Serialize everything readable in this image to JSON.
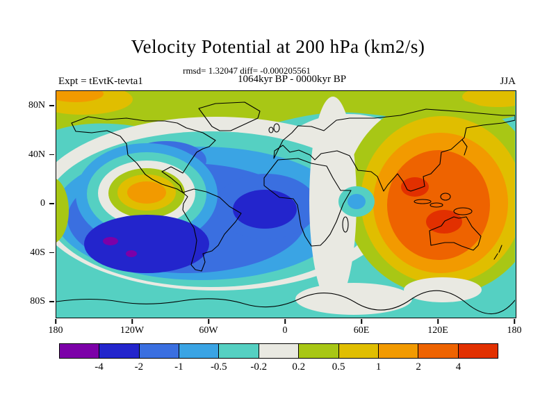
{
  "chart_data": {
    "type": "heatmap",
    "subtype": "filled-contour-global-map",
    "title": "Velocity Potential at 200 hPa (km2/s)",
    "stats_line": "rmsd= 1.32047 diff= -0.000205561",
    "difference_label": "1064kyr BP - 0000kyr BP",
    "experiment_label": "Expt = tEvtK-tevta1",
    "season_label": "JJA",
    "units": "km2/s",
    "x_ticks": [
      "180",
      "120W",
      "60W",
      "0",
      "60E",
      "120E",
      "180"
    ],
    "y_ticks": [
      "80N",
      "40N",
      "0",
      "40S",
      "80S"
    ],
    "grid": false,
    "legend_position": "bottom-colorbar",
    "colorbar": {
      "levels": [
        "-4",
        "-2",
        "-1",
        "-0.5",
        "-0.2",
        "0.2",
        "0.5",
        "1",
        "2",
        "4"
      ],
      "colors": [
        "#7c00a8",
        "#2325cc",
        "#3a6fe0",
        "#3aa4e4",
        "#55d0c2",
        "#e9e9e2",
        "#a8c715",
        "#e0be00",
        "#f29a00",
        "#ee6300",
        "#e23000"
      ]
    },
    "features": [
      {
        "region": "North and South Pacific basin",
        "sign": "negative",
        "approx_extreme": -4
      },
      {
        "region": "Tropical Atlantic / northern South America",
        "sign": "negative",
        "approx_extreme": -2
      },
      {
        "region": "Eastern tropical Pacific near 120W, 5N",
        "sign": "positive",
        "approx_extreme": 2
      },
      {
        "region": "South Asia / Indian Ocean / Maritime Continent / Australia",
        "sign": "positive",
        "approx_extreme": 4
      },
      {
        "region": "High northern latitudes band",
        "sign": "positive",
        "approx_extreme": 0.5
      },
      {
        "region": "Southern Ocean band",
        "sign": "negative",
        "approx_extreme": -0.5
      },
      {
        "region": "Western Indian Ocean near 60E, equator",
        "sign": "negative",
        "approx_extreme": -1
      }
    ]
  }
}
